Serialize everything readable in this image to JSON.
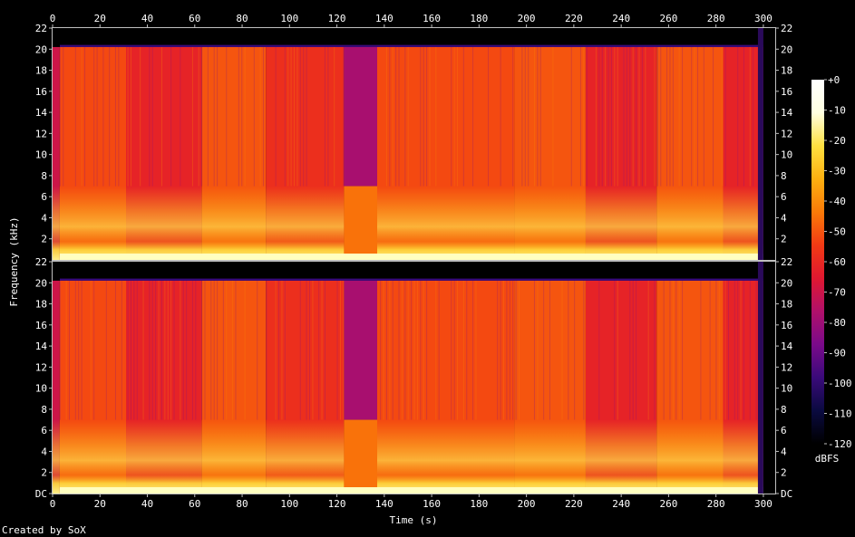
{
  "chart_data": {
    "type": "heatmap",
    "title": "",
    "xlabel": "Time (s)",
    "ylabel": "Frequency (kHz)",
    "xlim": [
      0,
      305
    ],
    "ylim_khz": [
      0,
      22
    ],
    "x_ticks": [
      0,
      20,
      40,
      60,
      80,
      100,
      120,
      140,
      160,
      180,
      200,
      220,
      240,
      260,
      280,
      300
    ],
    "y_ticks": [
      {
        "value": 0,
        "label": "DC"
      },
      {
        "value": 2,
        "label": "2"
      },
      {
        "value": 4,
        "label": "4"
      },
      {
        "value": 6,
        "label": "6"
      },
      {
        "value": 8,
        "label": "8"
      },
      {
        "value": 10,
        "label": "10"
      },
      {
        "value": 12,
        "label": "12"
      },
      {
        "value": 14,
        "label": "14"
      },
      {
        "value": 16,
        "label": "16"
      },
      {
        "value": 18,
        "label": "18"
      },
      {
        "value": 20,
        "label": "20"
      },
      {
        "value": 22,
        "label": "22"
      }
    ],
    "channels": 2,
    "audio_end_s": 300,
    "lowpass_cutoff_khz": 20.2,
    "quiet_segments": [
      {
        "start_s": 123,
        "end_s": 137,
        "level_dbfs": -78
      }
    ],
    "segments": [
      {
        "start_s": 0,
        "end_s": 3,
        "hf_level_dbfs": -70
      },
      {
        "start_s": 3,
        "end_s": 31,
        "hf_level_dbfs": -52
      },
      {
        "start_s": 31,
        "end_s": 63,
        "hf_level_dbfs": -62
      },
      {
        "start_s": 63,
        "end_s": 90,
        "hf_level_dbfs": -50
      },
      {
        "start_s": 90,
        "end_s": 123,
        "hf_level_dbfs": -58
      },
      {
        "start_s": 137,
        "end_s": 195,
        "hf_level_dbfs": -52
      },
      {
        "start_s": 195,
        "end_s": 225,
        "hf_level_dbfs": -50
      },
      {
        "start_s": 225,
        "end_s": 255,
        "hf_level_dbfs": -62
      },
      {
        "start_s": 255,
        "end_s": 283,
        "hf_level_dbfs": -50
      },
      {
        "start_s": 283,
        "end_s": 300,
        "hf_level_dbfs": -62
      }
    ],
    "colorbar": {
      "label": "dBFS",
      "range": [
        -120,
        0
      ],
      "ticks": [
        "+0",
        "-10",
        "-20",
        "-30",
        "-40",
        "-50",
        "-60",
        "-70",
        "-80",
        "-90",
        "-100",
        "-110",
        "-120"
      ],
      "colors": [
        "#000000",
        "#0a0a40",
        "#3a0a7a",
        "#7a0a8a",
        "#b0106a",
        "#e01830",
        "#f23a14",
        "#fa7a08",
        "#fdb010",
        "#fee040",
        "#ffffe0",
        "#ffffff"
      ]
    }
  },
  "footer": {
    "credit": "Created by SoX"
  }
}
